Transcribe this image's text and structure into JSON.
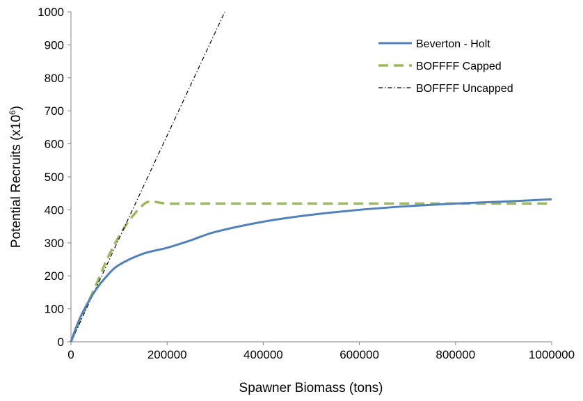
{
  "chart_data": {
    "type": "line",
    "title": "",
    "xlabel": "Spawner Biomass (tons)",
    "ylabel": {
      "main": "Potential Recruits (x10",
      "sup": "6",
      "close": ")"
    },
    "xlim": [
      0,
      1000000
    ],
    "ylim": [
      0,
      1000
    ],
    "x_ticks": [
      "0",
      "200000",
      "400000",
      "600000",
      "800000",
      "1000000"
    ],
    "y_ticks": [
      "0",
      "100",
      "200",
      "300",
      "400",
      "500",
      "600",
      "700",
      "800",
      "900",
      "1000"
    ],
    "x_tick_values": [
      0,
      200000,
      400000,
      600000,
      800000,
      1000000
    ],
    "y_tick_values": [
      0,
      100,
      200,
      300,
      400,
      500,
      600,
      700,
      800,
      900,
      1000
    ],
    "grid": false,
    "legend_position": "top-right",
    "series": [
      {
        "name": "Beverton - Holt",
        "color": "#4F81BD",
        "style": "solid",
        "x": [
          0,
          10000,
          25000,
          50000,
          75000,
          100000,
          150000,
          200000,
          250000,
          300000,
          400000,
          500000,
          600000,
          700000,
          800000,
          900000,
          1000000
        ],
        "y": [
          0,
          41,
          91,
          154,
          200,
          233,
          267,
          285,
          308,
          333,
          364,
          385,
          400,
          411,
          419,
          425,
          432
        ]
      },
      {
        "name": "BOFFFF Capped",
        "color": "#9BBB59",
        "style": "dashed",
        "x": [
          0,
          25000,
          50000,
          75000,
          100000,
          125000,
          150000,
          165000,
          180000,
          200000,
          250000,
          400000,
          600000,
          800000,
          1000000
        ],
        "y": [
          0,
          85,
          165,
          250,
          320,
          375,
          415,
          426,
          423,
          419,
          419,
          419,
          419,
          419,
          419
        ]
      },
      {
        "name": "BOFFFF Uncapped",
        "color": "#000000",
        "style": "dashdot",
        "x": [
          0,
          320000
        ],
        "y": [
          0,
          1000
        ]
      }
    ]
  }
}
